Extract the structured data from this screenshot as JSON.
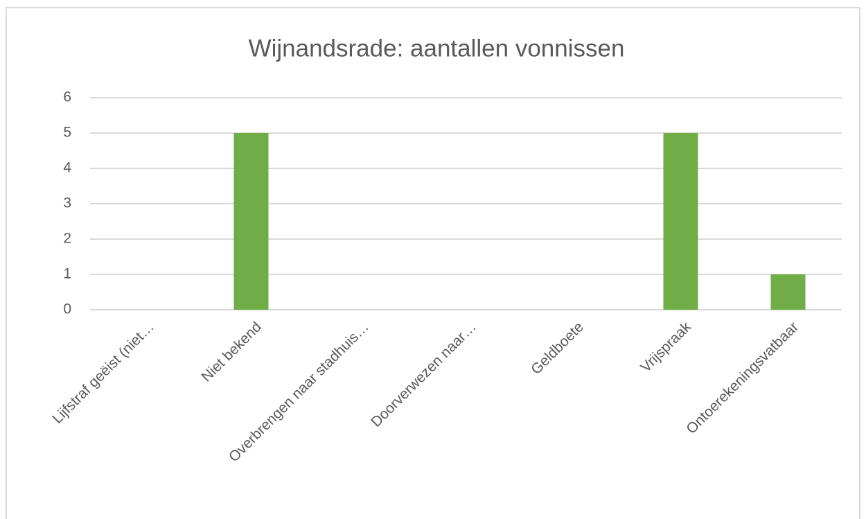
{
  "chart_data": {
    "type": "bar",
    "title": "Wijnandsrade: aantallen vonnissen",
    "categories": [
      "Lijfstraf geëist (niet…",
      "Niet bekend",
      "Overbrengen naar stadhuis…",
      "Doorverwezen naar…",
      "Geldboete",
      "Vrijspraak",
      "Ontoerekeningsvatbaar"
    ],
    "values": [
      0,
      5,
      0,
      0,
      0,
      5,
      1
    ],
    "color": "#70ad47",
    "ylim": [
      0,
      6
    ],
    "yticks": [
      0,
      1,
      2,
      3,
      4,
      5,
      6
    ],
    "grid": true
  }
}
